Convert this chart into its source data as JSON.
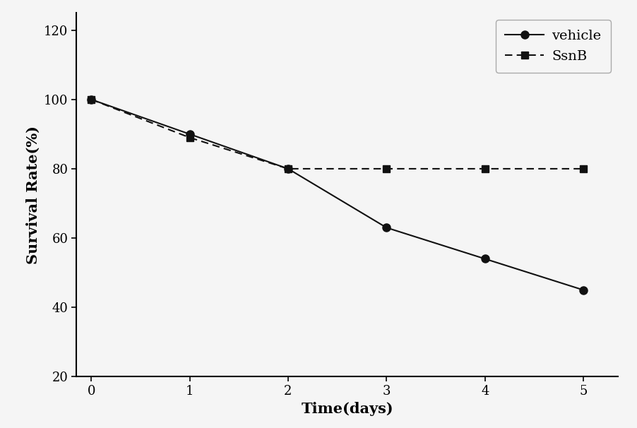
{
  "vehicle_x": [
    0,
    1,
    2,
    3,
    4,
    5
  ],
  "vehicle_y": [
    100,
    90,
    80,
    63,
    54,
    45
  ],
  "ssnb_x": [
    0,
    1,
    2,
    3,
    4,
    5
  ],
  "ssnb_y": [
    100,
    89,
    80,
    80,
    80,
    80
  ],
  "vehicle_label": "vehicle",
  "ssnb_label": "SsnB",
  "xlabel": "Time(days)",
  "ylabel": "Survival Rate(%)",
  "ylim": [
    20,
    125
  ],
  "xlim": [
    -0.15,
    5.35
  ],
  "yticks": [
    20,
    40,
    60,
    80,
    100,
    120
  ],
  "xticks": [
    0,
    1,
    2,
    3,
    4,
    5
  ],
  "line_color": "#111111",
  "background_color": "#f5f5f5",
  "legend_fontsize": 14,
  "axis_label_fontsize": 15,
  "tick_fontsize": 13
}
